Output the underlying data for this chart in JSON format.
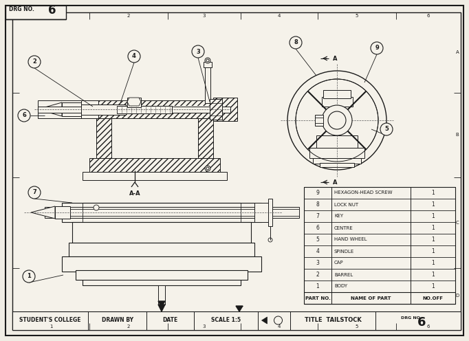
{
  "bg_color": "#f0ede4",
  "white": "#f5f2ea",
  "line_color": "#1a1a1a",
  "hatch_color": "#1a1a1a",
  "title": "TAILSTOCK",
  "drg_no": "6",
  "scale": "SCALE 1:5",
  "institution": "STUDENT'S COLLEGE",
  "drawn_by_label": "DRAWN BY",
  "date_label": "DATE",
  "parts": [
    {
      "no": 9,
      "name": "HEXAGON-HEAD SCREW",
      "qty": 1
    },
    {
      "no": 8,
      "name": "LOCK NUT",
      "qty": 1
    },
    {
      "no": 7,
      "name": "KEY",
      "qty": 1
    },
    {
      "no": 6,
      "name": "CENTRE",
      "qty": 1
    },
    {
      "no": 5,
      "name": "HAND WHEEL",
      "qty": 1
    },
    {
      "no": 4,
      "name": "SPINDLE",
      "qty": 1
    },
    {
      "no": 3,
      "name": "CAP",
      "qty": 1
    },
    {
      "no": 2,
      "name": "BARREL",
      "qty": 1
    },
    {
      "no": 1,
      "name": "BODY",
      "qty": 1
    }
  ],
  "row_labels": [
    "A",
    "B",
    "C",
    "D"
  ],
  "col_labels": [
    "1",
    "2",
    "3",
    "4",
    "5",
    "6"
  ]
}
